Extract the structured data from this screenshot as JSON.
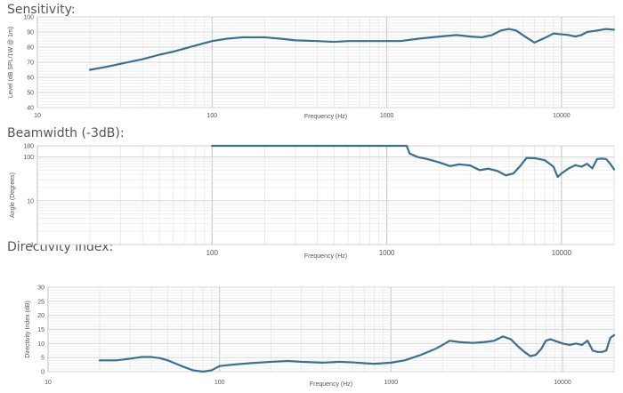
{
  "charts": [
    {
      "section_title": "Sensitivity:",
      "chart_data": {
        "type": "line",
        "xlabel": "Frequency (Hz)",
        "ylabel": "Level (dB SPL/1W @ 1m)",
        "xscale": "log",
        "xlim": [
          10,
          20000
        ],
        "ylim": [
          40,
          100
        ],
        "yticks": [
          40,
          50,
          60,
          70,
          80,
          90,
          100
        ],
        "xticks": [
          10,
          100,
          1000,
          10000
        ],
        "grid": true,
        "color": "#3a6f8f",
        "points": [
          [
            20,
            65
          ],
          [
            25,
            67
          ],
          [
            30,
            69
          ],
          [
            40,
            72
          ],
          [
            50,
            75
          ],
          [
            60,
            77
          ],
          [
            80,
            81
          ],
          [
            100,
            84
          ],
          [
            120,
            85.5
          ],
          [
            150,
            86.5
          ],
          [
            200,
            86.5
          ],
          [
            250,
            85.5
          ],
          [
            300,
            84.5
          ],
          [
            400,
            84
          ],
          [
            500,
            83.5
          ],
          [
            600,
            84
          ],
          [
            800,
            84
          ],
          [
            1000,
            84
          ],
          [
            1200,
            84
          ],
          [
            1500,
            85.5
          ],
          [
            2000,
            87
          ],
          [
            2500,
            88
          ],
          [
            3000,
            87
          ],
          [
            3500,
            86.5
          ],
          [
            4000,
            88
          ],
          [
            4500,
            91
          ],
          [
            5000,
            92
          ],
          [
            5500,
            91
          ],
          [
            6000,
            88
          ],
          [
            7000,
            83
          ],
          [
            8000,
            86
          ],
          [
            9000,
            89
          ],
          [
            10000,
            88.5
          ],
          [
            11000,
            88
          ],
          [
            12000,
            87
          ],
          [
            13000,
            88
          ],
          [
            14000,
            90
          ],
          [
            16000,
            91
          ],
          [
            18000,
            92
          ],
          [
            20000,
            91.5
          ]
        ]
      }
    },
    {
      "section_title": "Beamwidth (-3dB):",
      "chart_data": {
        "type": "line",
        "xlabel": "Frequency (Hz)",
        "ylabel": "Angle (Degrees)",
        "xscale": "log",
        "yscale": "log",
        "xlim": [
          10,
          20000
        ],
        "ylim": [
          1,
          180
        ],
        "yticks": [
          1,
          10,
          100,
          180
        ],
        "xticks": [
          100,
          1000,
          10000
        ],
        "grid": true,
        "color": "#3a6f8f",
        "points": [
          [
            100,
            180
          ],
          [
            200,
            180
          ],
          [
            500,
            180
          ],
          [
            1000,
            180
          ],
          [
            1300,
            180
          ],
          [
            1350,
            120
          ],
          [
            1500,
            100
          ],
          [
            1700,
            90
          ],
          [
            2000,
            75
          ],
          [
            2300,
            62
          ],
          [
            2600,
            68
          ],
          [
            3000,
            64
          ],
          [
            3400,
            50
          ],
          [
            3800,
            54
          ],
          [
            4300,
            48
          ],
          [
            4800,
            38
          ],
          [
            5300,
            42
          ],
          [
            5800,
            62
          ],
          [
            6300,
            95
          ],
          [
            7000,
            94
          ],
          [
            8000,
            85
          ],
          [
            9000,
            60
          ],
          [
            9500,
            35
          ],
          [
            10000,
            42
          ],
          [
            11000,
            55
          ],
          [
            12000,
            65
          ],
          [
            13000,
            60
          ],
          [
            14000,
            70
          ],
          [
            15000,
            55
          ],
          [
            16000,
            90
          ],
          [
            17000,
            92
          ],
          [
            18000,
            90
          ],
          [
            19000,
            70
          ],
          [
            20000,
            52
          ]
        ]
      }
    },
    {
      "section_title": "Directivity index:",
      "chart_data": {
        "type": "line",
        "xlabel": "Frequency (Hz)",
        "ylabel": "Directivity Index (dB)",
        "xscale": "log",
        "xlim": [
          10,
          20000
        ],
        "ylim": [
          0,
          30
        ],
        "yticks": [
          0,
          5,
          10,
          15,
          20,
          25,
          30
        ],
        "xticks": [
          10,
          100,
          1000,
          10000
        ],
        "grid": true,
        "color": "#3a6f8f",
        "points": [
          [
            20,
            4
          ],
          [
            25,
            4
          ],
          [
            30,
            4.6
          ],
          [
            35,
            5.2
          ],
          [
            40,
            5.2
          ],
          [
            45,
            4.8
          ],
          [
            50,
            4
          ],
          [
            60,
            2
          ],
          [
            70,
            0.5
          ],
          [
            80,
            0
          ],
          [
            90,
            0.5
          ],
          [
            100,
            2
          ],
          [
            120,
            2.5
          ],
          [
            150,
            3
          ],
          [
            200,
            3.5
          ],
          [
            250,
            3.8
          ],
          [
            300,
            3.5
          ],
          [
            400,
            3.2
          ],
          [
            500,
            3.5
          ],
          [
            600,
            3.3
          ],
          [
            700,
            3
          ],
          [
            800,
            2.8
          ],
          [
            900,
            3
          ],
          [
            1000,
            3.2
          ],
          [
            1200,
            4
          ],
          [
            1500,
            6
          ],
          [
            1800,
            8
          ],
          [
            2000,
            9.5
          ],
          [
            2200,
            11
          ],
          [
            2500,
            10.5
          ],
          [
            3000,
            10.2
          ],
          [
            3500,
            10.5
          ],
          [
            4000,
            11
          ],
          [
            4500,
            12.5
          ],
          [
            5000,
            11.5
          ],
          [
            5500,
            9
          ],
          [
            6000,
            7
          ],
          [
            6500,
            5.5
          ],
          [
            7000,
            6
          ],
          [
            7500,
            8
          ],
          [
            8000,
            11
          ],
          [
            8500,
            11.5
          ],
          [
            9000,
            11
          ],
          [
            10000,
            10
          ],
          [
            11000,
            9.5
          ],
          [
            12000,
            10
          ],
          [
            13000,
            9.5
          ],
          [
            14000,
            11
          ],
          [
            15000,
            7.5
          ],
          [
            16000,
            7
          ],
          [
            17000,
            7
          ],
          [
            18000,
            7.5
          ],
          [
            19000,
            12
          ],
          [
            20000,
            13
          ]
        ]
      }
    }
  ]
}
